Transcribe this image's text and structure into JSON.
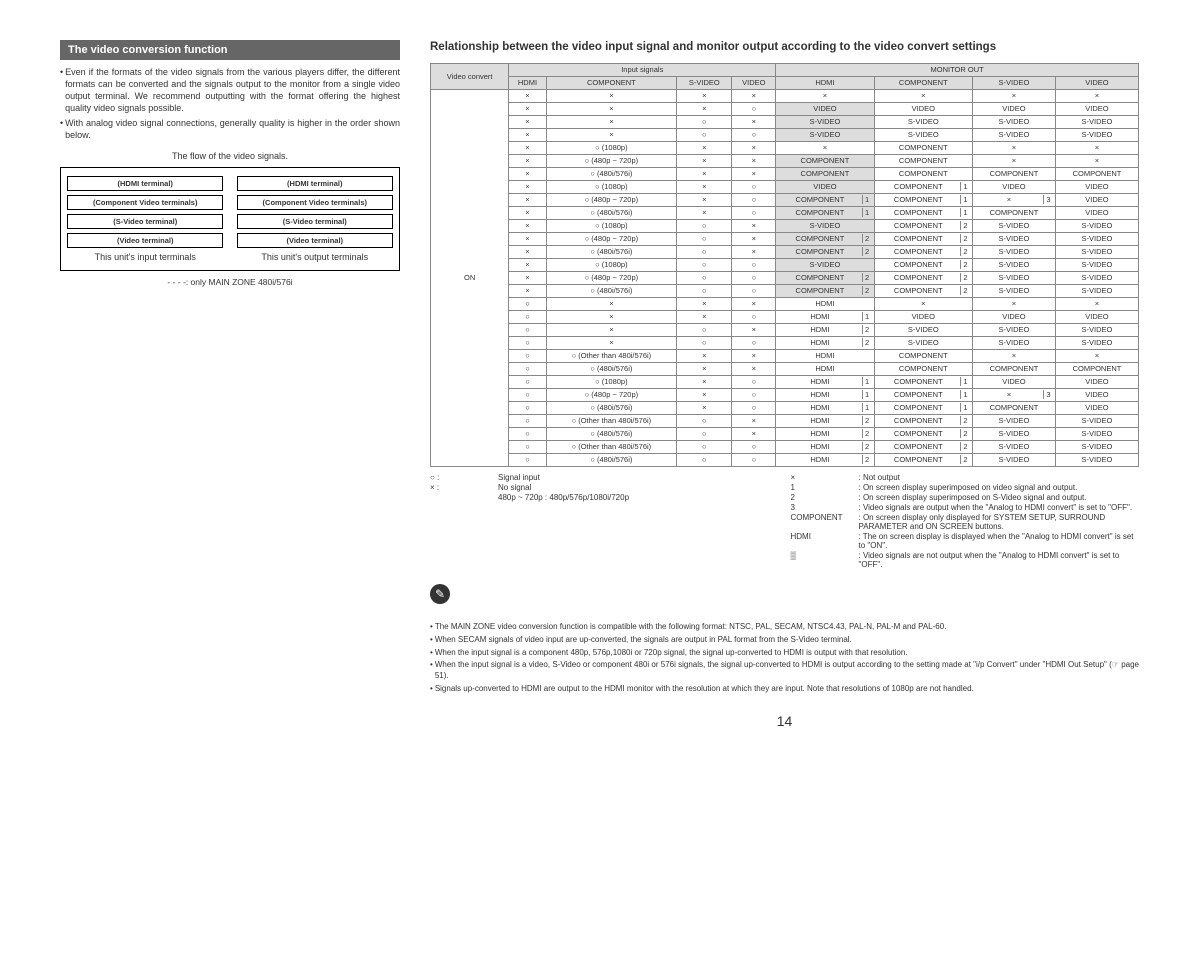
{
  "left": {
    "header": "The video conversion function",
    "bullets": [
      "Even if the formats of the video signals from the various players differ, the different formats can be converted and the signals output to the monitor from a single video output terminal. We recommend outputting with the format offering the highest quality video signals possible.",
      "With analog video signal connections, generally quality is higher in the order shown below."
    ],
    "flow_caption": "The flow of the video signals.",
    "diagram_labels": [
      "(HDMI terminal)",
      "(HDMI terminal)",
      "(Component Video terminals)",
      "(Component Video terminals)",
      "(S-Video terminal)",
      "(S-Video terminal)",
      "(Video terminal)",
      "(Video terminal)"
    ],
    "diagram_bottom": [
      "This unit's input terminals",
      "This unit's output terminals"
    ],
    "dash_note": "- - - -: only MAIN ZONE 480i/576i"
  },
  "right": {
    "title": "Relationship between the video input signal and monitor output according to the video convert settings",
    "table": {
      "group_headers": [
        "Input signals",
        "MONITOR OUT"
      ],
      "cols": [
        "HDMI",
        "COMPONENT",
        "S-VIDEO",
        "VIDEO",
        "HDMI",
        "COMPONENT",
        "S-VIDEO",
        "VIDEO"
      ],
      "corner": "Video convert",
      "side": "ON",
      "rows": [
        [
          "×",
          "×",
          "×",
          "×",
          "×",
          "×",
          "×",
          "×"
        ],
        [
          "×",
          "×",
          "×",
          "○",
          {
            "t": "VIDEO",
            "g": 1
          },
          "VIDEO",
          "VIDEO",
          "VIDEO"
        ],
        [
          "×",
          "×",
          "○",
          "×",
          {
            "t": "S-VIDEO",
            "g": 1
          },
          "S-VIDEO",
          "S-VIDEO",
          "S-VIDEO"
        ],
        [
          "×",
          "×",
          "○",
          "○",
          {
            "t": "S-VIDEO",
            "g": 1
          },
          "S-VIDEO",
          "S-VIDEO",
          "S-VIDEO"
        ],
        [
          "×",
          "○ (1080p)",
          "×",
          "×",
          "×",
          "COMPONENT",
          "×",
          "×"
        ],
        [
          "×",
          "○ (480p ~ 720p)",
          "×",
          "×",
          {
            "t": "COMPONENT",
            "g": 1
          },
          "COMPONENT",
          "×",
          "×"
        ],
        [
          "×",
          "○ (480i/576i)",
          "×",
          "×",
          {
            "t": "COMPONENT",
            "g": 1
          },
          "COMPONENT",
          "COMPONENT",
          "COMPONENT"
        ],
        [
          "×",
          "○ (1080p)",
          "×",
          "○",
          {
            "t": "VIDEO",
            "g": 1
          },
          {
            "t": "COMPONENT",
            "s": "1"
          },
          "VIDEO",
          "VIDEO"
        ],
        [
          "×",
          "○ (480p ~ 720p)",
          "×",
          "○",
          {
            "t": "COMPONENT",
            "g": 1,
            "s": "1"
          },
          {
            "t": "COMPONENT",
            "s": "1"
          },
          {
            "t": "×",
            "s": "3"
          },
          "VIDEO"
        ],
        [
          "×",
          "○ (480i/576i)",
          "×",
          "○",
          {
            "t": "COMPONENT",
            "g": 1,
            "s": "1"
          },
          {
            "t": "COMPONENT",
            "s": "1"
          },
          "COMPONENT",
          "VIDEO"
        ],
        [
          "×",
          "○ (1080p)",
          "○",
          "×",
          {
            "t": "S-VIDEO",
            "g": 1
          },
          {
            "t": "COMPONENT",
            "s": "2"
          },
          "S-VIDEO",
          "S-VIDEO"
        ],
        [
          "×",
          "○ (480p ~ 720p)",
          "○",
          "×",
          {
            "t": "COMPONENT",
            "g": 1,
            "s": "2"
          },
          {
            "t": "COMPONENT",
            "s": "2"
          },
          "S-VIDEO",
          "S-VIDEO"
        ],
        [
          "×",
          "○ (480i/576i)",
          "○",
          "×",
          {
            "t": "COMPONENT",
            "g": 1,
            "s": "2"
          },
          {
            "t": "COMPONENT",
            "s": "2"
          },
          "S-VIDEO",
          "S-VIDEO"
        ],
        [
          "×",
          "○ (1080p)",
          "○",
          "○",
          {
            "t": "S-VIDEO",
            "g": 1
          },
          {
            "t": "COMPONENT",
            "s": "2"
          },
          "S-VIDEO",
          "S-VIDEO"
        ],
        [
          "×",
          "○ (480p ~ 720p)",
          "○",
          "○",
          {
            "t": "COMPONENT",
            "g": 1,
            "s": "2"
          },
          {
            "t": "COMPONENT",
            "s": "2"
          },
          "S-VIDEO",
          "S-VIDEO"
        ],
        [
          "×",
          "○ (480i/576i)",
          "○",
          "○",
          {
            "t": "COMPONENT",
            "g": 1,
            "s": "2"
          },
          {
            "t": "COMPONENT",
            "s": "2"
          },
          "S-VIDEO",
          "S-VIDEO"
        ],
        [
          "○",
          "×",
          "×",
          "×",
          "HDMI",
          "×",
          "×",
          "×"
        ],
        [
          "○",
          "×",
          "×",
          "○",
          {
            "t": "HDMI",
            "s": "1"
          },
          "VIDEO",
          "VIDEO",
          "VIDEO"
        ],
        [
          "○",
          "×",
          "○",
          "×",
          {
            "t": "HDMI",
            "s": "2"
          },
          "S-VIDEO",
          "S-VIDEO",
          "S-VIDEO"
        ],
        [
          "○",
          "×",
          "○",
          "○",
          {
            "t": "HDMI",
            "s": "2"
          },
          "S-VIDEO",
          "S-VIDEO",
          "S-VIDEO"
        ],
        [
          "○",
          "○ (Other than 480i/576i)",
          "×",
          "×",
          "HDMI",
          "COMPONENT",
          "×",
          "×"
        ],
        [
          "○",
          "○ (480i/576i)",
          "×",
          "×",
          "HDMI",
          "COMPONENT",
          "COMPONENT",
          "COMPONENT"
        ],
        [
          "○",
          "○ (1080p)",
          "×",
          "○",
          {
            "t": "HDMI",
            "s": "1"
          },
          {
            "t": "COMPONENT",
            "s": "1"
          },
          "VIDEO",
          "VIDEO"
        ],
        [
          "○",
          "○ (480p ~ 720p)",
          "×",
          "○",
          {
            "t": "HDMI",
            "s": "1"
          },
          {
            "t": "COMPONENT",
            "s": "1"
          },
          {
            "t": "×",
            "s": "3"
          },
          "VIDEO"
        ],
        [
          "○",
          "○ (480i/576i)",
          "×",
          "○",
          {
            "t": "HDMI",
            "s": "1"
          },
          {
            "t": "COMPONENT",
            "s": "1"
          },
          "COMPONENT",
          "VIDEO"
        ],
        [
          "○",
          "○ (Other than 480i/576i)",
          "○",
          "×",
          {
            "t": "HDMI",
            "s": "2"
          },
          {
            "t": "COMPONENT",
            "s": "2"
          },
          "S-VIDEO",
          "S-VIDEO"
        ],
        [
          "○",
          "○ (480i/576i)",
          "○",
          "×",
          {
            "t": "HDMI",
            "s": "2"
          },
          {
            "t": "COMPONENT",
            "s": "2"
          },
          "S-VIDEO",
          "S-VIDEO"
        ],
        [
          "○",
          "○ (Other than 480i/576i)",
          "○",
          "○",
          {
            "t": "HDMI",
            "s": "2"
          },
          {
            "t": "COMPONENT",
            "s": "2"
          },
          "S-VIDEO",
          "S-VIDEO"
        ],
        [
          "○",
          "○ (480i/576i)",
          "○",
          "○",
          {
            "t": "HDMI",
            "s": "2"
          },
          {
            "t": "COMPONENT",
            "s": "2"
          },
          "S-VIDEO",
          "S-VIDEO"
        ]
      ]
    },
    "legend_left": [
      {
        "k": "○ :",
        "v": "Signal input"
      },
      {
        "k": "× :",
        "v": "No signal"
      },
      {
        "k": "",
        "v": "480p ~ 720p : 480p/576p/1080i/720p"
      }
    ],
    "legend_right": [
      {
        "k": "×",
        "v": ": Not output"
      },
      {
        "k": "1",
        "v": ": On screen display superimposed on video signal and output."
      },
      {
        "k": "2",
        "v": ": On screen display superimposed on S-Video signal and output."
      },
      {
        "k": "3",
        "v": ": Video signals are output when the \"Analog to HDMI convert\" is set to \"OFF\"."
      },
      {
        "k": "COMPONENT",
        "v": ": On screen display only displayed for SYSTEM SETUP, SURROUND PARAMETER and ON SCREEN buttons."
      },
      {
        "k": "HDMI",
        "v": ": The on screen display is displayed when the \"Analog to HDMI convert\" is set to \"ON\"."
      },
      {
        "k": "▒",
        "v": ": Video signals are not output when the \"Analog to HDMI convert\" is set to \"OFF\"."
      }
    ],
    "notes": [
      "The MAIN ZONE video conversion function is compatible with the following format: NTSC, PAL, SECAM, NTSC4.43, PAL-N, PAL-M and PAL-60.",
      "When SECAM signals of video input are up-converted, the signals are output in PAL format from the S-Video terminal.",
      "When the input signal is a component 480p, 576p,1080i or 720p signal, the signal up-converted to HDMI is output with that resolution.",
      "When the input signal is a video, S-Video or component 480i or 576i signals, the signal up-converted to HDMI is output according to the setting made at \"i/p Convert\" under \"HDMI Out Setup\" (☞ page 51).",
      "Signals up-converted to HDMI are output to the HDMI monitor with the resolution at which they are input. Note that resolutions of 1080p are not handled."
    ]
  },
  "page": "14"
}
